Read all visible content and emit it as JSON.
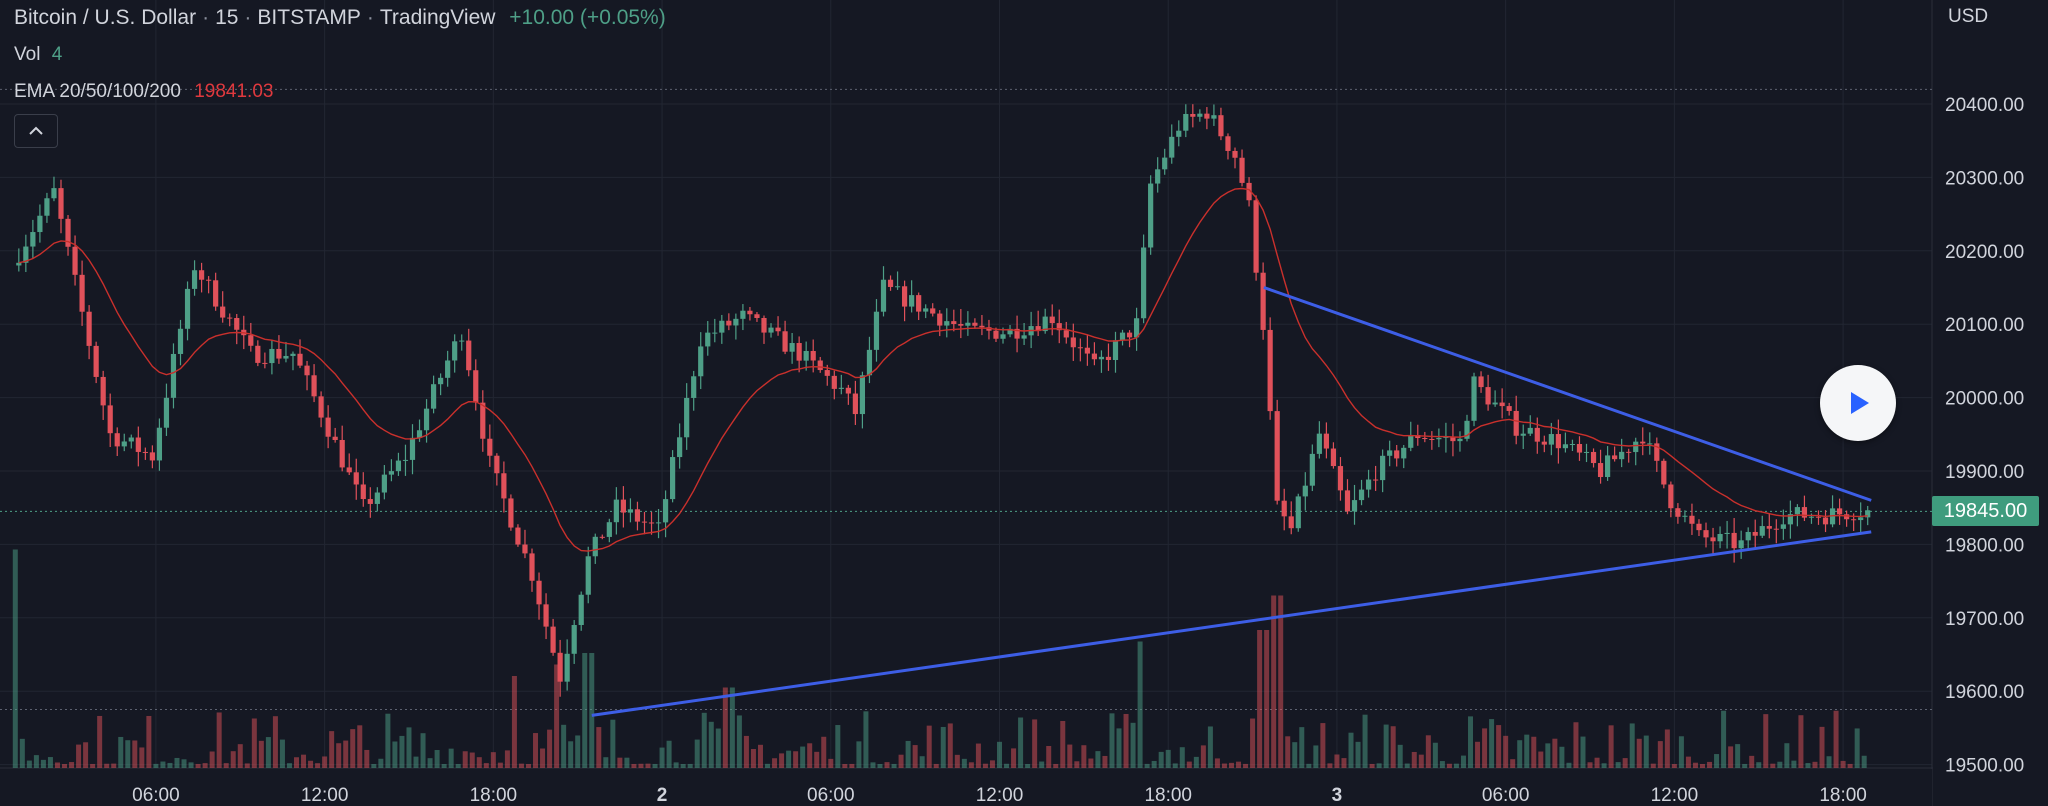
{
  "header": {
    "symbol": "Bitcoin / U.S. Dollar",
    "interval": "15",
    "exchange": "BITSTAMP",
    "source": "TradingView",
    "change": "+10.00 (+0.05%)"
  },
  "indicators": {
    "vol_label": "Vol",
    "vol_value": "4",
    "ema_label": "EMA 20/50/100/200",
    "ema_value": "19841.03"
  },
  "axis": {
    "currency": "USD",
    "last_price_label": "19845.00"
  },
  "colors": {
    "background": "#151823",
    "up": "#4e9f87",
    "down": "#e0515a",
    "ema": "#c9302c",
    "trendline": "#3d5ee6",
    "price_label_bg": "#3f9c7e"
  },
  "icons": {
    "collapse": "chevron-up-icon",
    "play": "play-icon"
  },
  "chart_data": {
    "type": "candlestick",
    "symbol": "Bitcoin / U.S. Dollar",
    "interval_minutes": 15,
    "ylim": [
      19450,
      20460
    ],
    "y_ticks": [
      19500,
      19600,
      19700,
      19800,
      19900,
      20000,
      20100,
      20200,
      20300,
      20400
    ],
    "y_tick_labels": [
      "19500.00",
      "19600.00",
      "19700.00",
      "19800.00",
      "19900.00",
      "20000.00",
      "20100.00",
      "20200.00",
      "20300.00",
      "20400.00"
    ],
    "x_tick_labels": [
      "06:00",
      "12:00",
      "18:00",
      "2",
      "06:00",
      "12:00",
      "18:00",
      "3",
      "06:00",
      "12:00",
      "18:00"
    ],
    "hours_start": 1.0,
    "hours_end": 67.0,
    "x_tick_hours": [
      6,
      12,
      18,
      24,
      30,
      36,
      42,
      48,
      54,
      60,
      66
    ],
    "last_price": 19845.0,
    "ema_value": 19841.03,
    "horizontal_lines": [
      20420,
      19575
    ],
    "trendlines": [
      {
        "name": "upper",
        "points": [
          [
            45.4,
            20150
          ],
          [
            67.0,
            19860
          ]
        ]
      },
      {
        "name": "lower",
        "points": [
          [
            21.5,
            19567
          ],
          [
            67.0,
            19817
          ]
        ]
      }
    ],
    "anchors": [
      [
        1.0,
        20180
      ],
      [
        2.5,
        20280
      ],
      [
        4.5,
        19950
      ],
      [
        6.0,
        19920
      ],
      [
        7.5,
        20180
      ],
      [
        9.5,
        20060
      ],
      [
        11.0,
        20060
      ],
      [
        12.0,
        19980
      ],
      [
        13.5,
        19850
      ],
      [
        15.0,
        19920
      ],
      [
        16.5,
        20050
      ],
      [
        17.0,
        20090
      ],
      [
        18.0,
        19910
      ],
      [
        19.5,
        19760
      ],
      [
        20.5,
        19620
      ],
      [
        21.5,
        19780
      ],
      [
        22.5,
        19850
      ],
      [
        24.0,
        19820
      ],
      [
        25.5,
        20080
      ],
      [
        27.0,
        20110
      ],
      [
        29.0,
        20060
      ],
      [
        30.5,
        20010
      ],
      [
        31.0,
        19980
      ],
      [
        32.0,
        20150
      ],
      [
        33.5,
        20120
      ],
      [
        35.0,
        20090
      ],
      [
        36.5,
        20090
      ],
      [
        38.0,
        20110
      ],
      [
        39.5,
        20040
      ],
      [
        41.0,
        20100
      ],
      [
        41.5,
        20290
      ],
      [
        42.5,
        20370
      ],
      [
        43.5,
        20390
      ],
      [
        44.5,
        20330
      ],
      [
        45.0,
        20260
      ],
      [
        45.5,
        20100
      ],
      [
        46.0,
        19850
      ],
      [
        46.5,
        19820
      ],
      [
        47.5,
        19950
      ],
      [
        48.5,
        19840
      ],
      [
        49.5,
        19900
      ],
      [
        51.0,
        19950
      ],
      [
        52.5,
        19940
      ],
      [
        53.0,
        20020
      ],
      [
        54.5,
        19960
      ],
      [
        56.0,
        19940
      ],
      [
        57.5,
        19900
      ],
      [
        59.0,
        19950
      ],
      [
        60.0,
        19860
      ],
      [
        61.0,
        19810
      ],
      [
        62.5,
        19800
      ],
      [
        64.0,
        19840
      ],
      [
        65.5,
        19840
      ],
      [
        66.5,
        19845
      ]
    ],
    "volume_spikes": [
      [
        0.5,
        0.45
      ],
      [
        1.1,
        0.95
      ],
      [
        18.9,
        0.4
      ],
      [
        20.3,
        0.45
      ],
      [
        21.5,
        0.5
      ],
      [
        26.5,
        0.35
      ],
      [
        41.2,
        0.55
      ],
      [
        45.5,
        0.6
      ],
      [
        46.0,
        0.75
      ]
    ]
  }
}
